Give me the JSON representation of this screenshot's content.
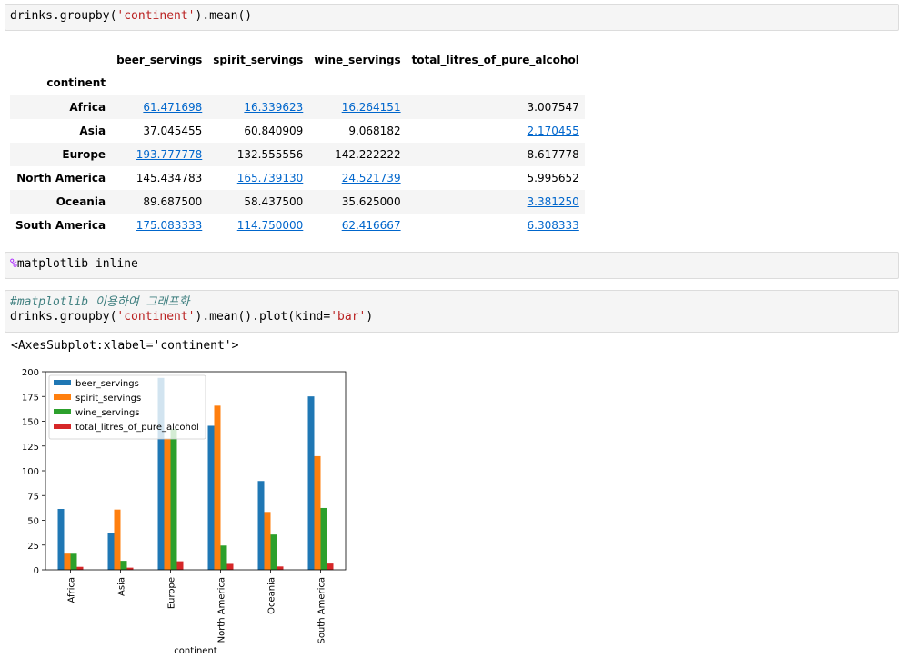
{
  "cells": {
    "code1": "drinks.groupby('continent').mean()",
    "code2_magic": "%",
    "code2_rest": "matplotlib inline",
    "code3_comment": "#matplotlib 이용하여 그래프화",
    "code3_pre": "drinks.groupby(",
    "code3_str": "'continent'",
    "code3_mid": ").mean().plot(kind=",
    "code3_str2": "'bar'",
    "code3_end": ")",
    "code1_pre": "drinks.groupby(",
    "code1_str": "'continent'",
    "code1_end": ").mean()",
    "output_text": "<AxesSubplot:xlabel='continent'>"
  },
  "table": {
    "columns": [
      "beer_servings",
      "spirit_servings",
      "wine_servings",
      "total_litres_of_pure_alcohol"
    ],
    "index_name": "continent",
    "rows": [
      {
        "name": "Africa",
        "values": [
          "61.471698",
          "16.339623",
          "16.264151",
          "3.007547"
        ],
        "links": [
          true,
          true,
          true,
          false
        ]
      },
      {
        "name": "Asia",
        "values": [
          "37.045455",
          "60.840909",
          "9.068182",
          "2.170455"
        ],
        "links": [
          false,
          false,
          false,
          true
        ]
      },
      {
        "name": "Europe",
        "values": [
          "193.777778",
          "132.555556",
          "142.222222",
          "8.617778"
        ],
        "links": [
          true,
          false,
          false,
          false
        ]
      },
      {
        "name": "North America",
        "values": [
          "145.434783",
          "165.739130",
          "24.521739",
          "5.995652"
        ],
        "links": [
          false,
          true,
          true,
          false
        ]
      },
      {
        "name": "Oceania",
        "values": [
          "89.687500",
          "58.437500",
          "35.625000",
          "3.381250"
        ],
        "links": [
          false,
          false,
          false,
          true
        ]
      },
      {
        "name": "South America",
        "values": [
          "175.083333",
          "114.750000",
          "62.416667",
          "6.308333"
        ],
        "links": [
          true,
          true,
          true,
          true
        ]
      }
    ]
  },
  "chart_data": {
    "type": "bar",
    "categories": [
      "Africa",
      "Asia",
      "Europe",
      "North America",
      "Oceania",
      "South America"
    ],
    "series": [
      {
        "name": "beer_servings",
        "values": [
          61.471698,
          37.045455,
          193.777778,
          145.434783,
          89.6875,
          175.083333
        ]
      },
      {
        "name": "spirit_servings",
        "values": [
          16.339623,
          60.840909,
          132.555556,
          165.73913,
          58.4375,
          114.75
        ]
      },
      {
        "name": "wine_servings",
        "values": [
          16.264151,
          9.068182,
          142.222222,
          24.521739,
          35.625,
          62.416667
        ]
      },
      {
        "name": "total_litres_of_pure_alcohol",
        "values": [
          3.007547,
          2.170455,
          8.617778,
          5.995652,
          3.38125,
          6.308333
        ]
      }
    ],
    "colors": [
      "#1f77b4",
      "#ff7f0e",
      "#2ca02c",
      "#d62728"
    ],
    "xlabel": "continent",
    "ylabel": "",
    "ylim": [
      0,
      200
    ],
    "yticks": [
      0,
      25,
      50,
      75,
      100,
      125,
      150,
      175,
      200
    ],
    "legend": "upper left",
    "grid": false
  }
}
